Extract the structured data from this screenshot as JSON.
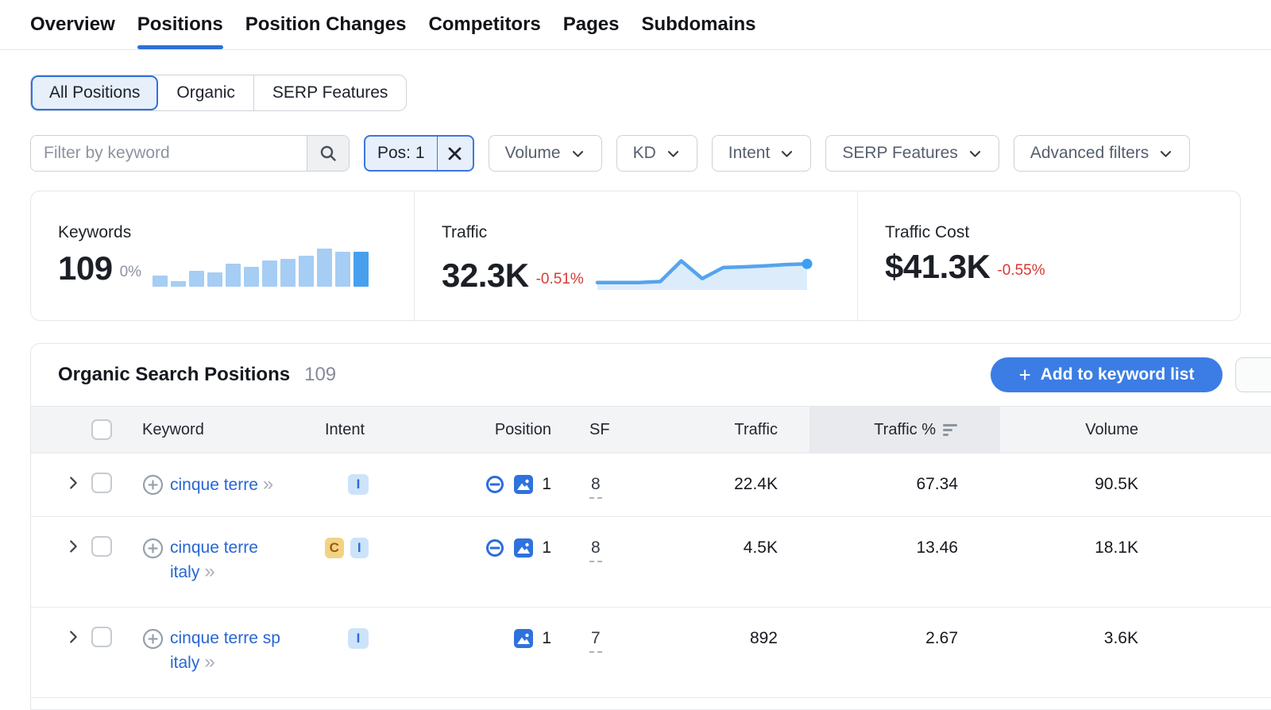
{
  "nav": {
    "tabs": [
      {
        "label": "Overview",
        "active": false
      },
      {
        "label": "Positions",
        "active": true
      },
      {
        "label": "Position Changes",
        "active": false
      },
      {
        "label": "Competitors",
        "active": false
      },
      {
        "label": "Pages",
        "active": false
      },
      {
        "label": "Subdomains",
        "active": false
      }
    ]
  },
  "view_switch": {
    "options": [
      {
        "label": "All Positions",
        "active": true
      },
      {
        "label": "Organic",
        "active": false
      },
      {
        "label": "SERP Features",
        "active": false
      }
    ]
  },
  "filter_bar": {
    "keyword_input_placeholder": "Filter by keyword",
    "position_chip_label": "Pos: 1",
    "dropdowns": [
      {
        "label": "Volume"
      },
      {
        "label": "KD"
      },
      {
        "label": "Intent"
      },
      {
        "label": "SERP Features"
      },
      {
        "label": "Advanced filters"
      }
    ]
  },
  "summary": {
    "keywords": {
      "label": "Keywords",
      "value": "109",
      "delta": "0%"
    },
    "traffic": {
      "label": "Traffic",
      "value": "32.3K",
      "delta": "-0.51%"
    },
    "traffic_cost": {
      "label": "Traffic Cost",
      "value": "$41.3K",
      "delta": "-0.55%"
    }
  },
  "chart_data": [
    {
      "type": "bar",
      "name": "keywords-trend-sparkline",
      "values": [
        0.3,
        0.15,
        0.42,
        0.38,
        0.6,
        0.52,
        0.68,
        0.72,
        0.82,
        1.0,
        0.92,
        0.92
      ],
      "ylim": [
        0,
        1
      ],
      "colors": {
        "bar": "#a6cdf4",
        "bar_last": "#47a0ed"
      }
    },
    {
      "type": "area",
      "name": "traffic-trend-sparkline",
      "values": [
        0.1,
        0.1,
        0.1,
        0.13,
        0.75,
        0.22,
        0.55,
        0.57,
        0.6,
        0.64,
        0.66
      ],
      "ylim": [
        0,
        1
      ],
      "colors": {
        "line": "#55a4ec",
        "fill": "#dcecfb",
        "dot": "#3d9ff0"
      }
    }
  ],
  "positions_table": {
    "title": "Organic Search Positions",
    "count": "109",
    "add_to_list_button": "Add to keyword list",
    "columns": {
      "keyword": "Keyword",
      "intent": "Intent",
      "position": "Position",
      "sf": "SF",
      "traffic": "Traffic",
      "traffic_pct": "Traffic %",
      "volume": "Volume"
    },
    "sorted_column": "Traffic %",
    "rows": [
      {
        "keyword": "cinque terre",
        "intents": {
          "i": "I"
        },
        "position": "1",
        "sf": "8",
        "traffic": "22.4K",
        "traffic_pct": "67.34",
        "volume": "90.5K"
      },
      {
        "keyword": "cinque terre italy",
        "intents": {
          "c": "C",
          "i": "I"
        },
        "position": "1",
        "sf": "8",
        "traffic": "4.5K",
        "traffic_pct": "13.46",
        "volume": "18.1K"
      },
      {
        "keyword": "cinque terre sp italy",
        "intents": {
          "i": "I"
        },
        "position": "1",
        "sf": "7",
        "traffic": "892",
        "traffic_pct": "2.67",
        "volume": "3.6K"
      }
    ]
  },
  "glyphs": {
    "plus": "+",
    "double_chevron": "»"
  },
  "colors": {
    "accent_blue": "#3b7de4",
    "link_blue": "#2766d2",
    "negative_red": "#d63a35",
    "active_tab_underline": "#2d6fd9",
    "badge_c_bg": "#f2d383",
    "badge_c_text": "#9a5b16",
    "badge_i_bg": "#cde3fa",
    "badge_i_text": "#2b6cd9",
    "sorted_header_bg": "#e8eaee"
  }
}
